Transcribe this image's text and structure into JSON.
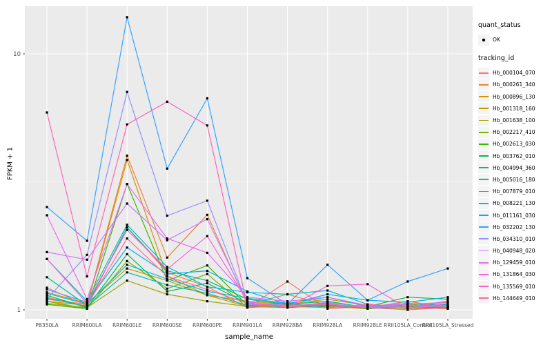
{
  "axes": {
    "x_title": "sample_name",
    "y_title": "FPKM + 1",
    "y_tick_labels": [
      "1",
      "10"
    ]
  },
  "legend": {
    "quant_status_title": "quant_status",
    "quant_status_value": "OK",
    "tracking_id_title": "tracking_id"
  },
  "colors": {
    "panel_bg": "#EBEBEB",
    "gridline": "#FFFFFF",
    "tick_text": "#4D4D4D",
    "point": "#000000"
  },
  "chart_data": {
    "type": "line",
    "title": "",
    "xlabel": "sample_name",
    "ylabel": "FPKM + 1",
    "y_scale": "log10",
    "y_ticks": [
      1,
      10
    ],
    "y_minor_ticks": [
      3.162
    ],
    "ylim": [
      0.93,
      15.5
    ],
    "grid": true,
    "legend_position": "right",
    "point_marker": "filled-square",
    "categories": [
      "PB350LA",
      "RRIM600LA",
      "RRIM600LE",
      "RRIM600SE",
      "RRIM600PE",
      "RRIM901LA",
      "RRIM928BA",
      "RRIM928LA",
      "RRIM928LE",
      "RRII105LA_Control",
      "RRII105LA_Stressed"
    ],
    "series": [
      {
        "name": "Hb_000104_070",
        "color": "#F8766D",
        "values": [
          1.12,
          1.03,
          2.1,
          1.4,
          1.23,
          1.02,
          1.29,
          1.01,
          1.03,
          1.02,
          1.01
        ]
      },
      {
        "name": "Hb_000261_340",
        "color": "#EA8331",
        "values": [
          1.1,
          1.05,
          4.0,
          1.6,
          2.35,
          1.05,
          1.15,
          1.04,
          1.02,
          1.08,
          1.02
        ]
      },
      {
        "name": "Hb_000896_130",
        "color": "#D89000",
        "values": [
          1.08,
          1.04,
          3.85,
          1.35,
          1.14,
          1.03,
          1.05,
          1.03,
          1.01,
          1.03,
          1.01
        ]
      },
      {
        "name": "Hb_001318_160",
        "color": "#C09B00",
        "values": [
          1.17,
          1.06,
          1.45,
          1.3,
          1.14,
          1.08,
          1.05,
          1.1,
          1.04,
          1.02,
          1.03
        ]
      },
      {
        "name": "Hb_001638_100",
        "color": "#A3A500",
        "values": [
          1.06,
          1.02,
          1.3,
          1.15,
          1.08,
          1.03,
          1.02,
          1.05,
          1.02,
          1.01,
          1.02
        ]
      },
      {
        "name": "Hb_002217_410",
        "color": "#7CAE00",
        "values": [
          1.08,
          1.01,
          1.55,
          1.21,
          1.38,
          1.02,
          1.04,
          1.03,
          1.02,
          1.05,
          1.03
        ]
      },
      {
        "name": "Hb_002613_030",
        "color": "#39B600",
        "values": [
          1.05,
          1.01,
          3.1,
          1.3,
          1.49,
          1.04,
          1.03,
          1.06,
          1.01,
          1.03,
          1.02
        ]
      },
      {
        "name": "Hb_003762_010",
        "color": "#00BB4E",
        "values": [
          1.14,
          1.02,
          1.65,
          1.18,
          1.27,
          1.06,
          1.02,
          1.04,
          1.03,
          1.12,
          1.1
        ]
      },
      {
        "name": "Hb_004994_360",
        "color": "#00BF7D",
        "values": [
          1.34,
          1.04,
          2.1,
          1.42,
          1.3,
          1.1,
          1.05,
          1.08,
          1.02,
          1.04,
          1.03
        ]
      },
      {
        "name": "Hb_005016_180",
        "color": "#00C1A3",
        "values": [
          1.11,
          1.03,
          1.4,
          1.25,
          1.16,
          1.04,
          1.06,
          1.02,
          1.04,
          1.02,
          1.05
        ]
      },
      {
        "name": "Hb_007879_010",
        "color": "#00BFC4",
        "values": [
          1.58,
          1.08,
          2.15,
          1.47,
          1.23,
          1.17,
          1.15,
          1.19,
          1.05,
          1.03,
          1.08
        ]
      },
      {
        "name": "Hb_008221_130",
        "color": "#00BAE0",
        "values": [
          1.16,
          1.05,
          1.5,
          1.32,
          1.18,
          1.11,
          1.06,
          1.12,
          1.03,
          1.06,
          1.04
        ]
      },
      {
        "name": "Hb_011161_030",
        "color": "#00B0F6",
        "values": [
          1.2,
          1.07,
          1.75,
          1.38,
          1.42,
          1.18,
          1.05,
          1.15,
          1.09,
          1.07,
          1.12
        ]
      },
      {
        "name": "Hb_032202_130",
        "color": "#35A2FF",
        "values": [
          2.52,
          1.86,
          13.9,
          3.56,
          6.7,
          1.33,
          1.05,
          1.5,
          1.09,
          1.29,
          1.45
        ]
      },
      {
        "name": "Hb_034310_010",
        "color": "#9590FF",
        "values": [
          1.1,
          1.64,
          7.1,
          2.33,
          2.67,
          1.05,
          1.03,
          1.07,
          1.02,
          1.04,
          1.03
        ]
      },
      {
        "name": "Hb_040948_020",
        "color": "#C77CFF",
        "values": [
          1.68,
          1.57,
          2.6,
          1.87,
          2.26,
          1.07,
          1.04,
          1.05,
          1.03,
          1.02,
          1.04
        ]
      },
      {
        "name": "Hb_129459_010",
        "color": "#E76BF3",
        "values": [
          2.34,
          1.1,
          3.1,
          1.9,
          1.67,
          1.12,
          1.08,
          1.12,
          1.04,
          1.05,
          1.07
        ]
      },
      {
        "name": "Hb_131864_030",
        "color": "#FA62DB",
        "values": [
          1.58,
          1.06,
          2.05,
          1.44,
          1.94,
          1.08,
          1.02,
          1.24,
          1.26,
          1.01,
          1.06
        ]
      },
      {
        "name": "Hb_135569_010",
        "color": "#FF62BC",
        "values": [
          5.9,
          1.35,
          5.3,
          6.5,
          5.25,
          1.03,
          1.04,
          1.05,
          1.02,
          1.0,
          1.02
        ]
      },
      {
        "name": "Hb_144649_010",
        "color": "#FF6A98",
        "values": [
          1.22,
          1.04,
          1.9,
          1.35,
          1.2,
          1.06,
          1.03,
          1.02,
          1.05,
          1.03,
          1.07
        ]
      }
    ]
  }
}
